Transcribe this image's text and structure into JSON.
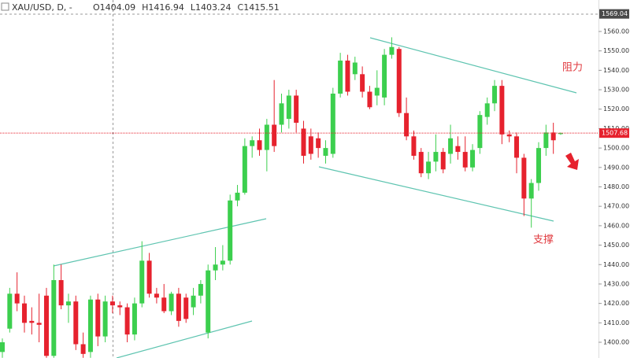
{
  "chart_data": {
    "type": "candlestick",
    "title": "XAU/USD, D, -",
    "ohlc": [
      {
        "value": 1404.09,
        "label": "O1404.09"
      },
      {
        "value": 1416.94,
        "label": "H1416.94"
      },
      {
        "value": 1403.24,
        "label": "L1403.24"
      },
      {
        "value": 1415.51,
        "label": "C1415.51"
      }
    ],
    "up_color": "#3ccf4e",
    "down_color": "#e6222e",
    "open": [
      1395,
      1407,
      1425,
      1420,
      1411,
      1410,
      1424,
      1393,
      1432,
      1419,
      1421,
      1399,
      1395,
      1422,
      1403,
      1421,
      1419,
      1418,
      1404,
      1420,
      1442,
      1425,
      1423,
      1416,
      1425,
      1423,
      1418,
      1424,
      1405,
      1437,
      1440,
      1442,
      1473,
      1477,
      1501,
      1504,
      1499,
      1512,
      1512,
      1515,
      1527,
      1510,
      1506,
      1505,
      1496,
      1497,
      1528,
      1545,
      1538,
      1538,
      1529,
      1527,
      1526,
      1548,
      1551,
      1518,
      1506,
      1498,
      1487,
      1493,
      1498,
      1497,
      1501,
      1498,
      1490,
      1500,
      1516,
      1523,
      1532,
      1507,
      1506,
      1495,
      1474,
      1482,
      1500,
      1508,
      1507.2
    ],
    "high": [
      1402,
      1428,
      1436,
      1424,
      1418,
      1425,
      1428,
      1440,
      1440,
      1425,
      1424,
      1405,
      1424,
      1425,
      1424,
      1424,
      1421,
      1420,
      1423,
      1452,
      1446,
      1428,
      1430,
      1426,
      1428,
      1425,
      1428,
      1432,
      1440,
      1449,
      1450,
      1476,
      1481,
      1505,
      1506,
      1510,
      1515,
      1535,
      1528,
      1530,
      1530,
      1514,
      1510,
      1508,
      1504,
      1531,
      1549,
      1548,
      1547,
      1542,
      1532,
      1540,
      1551,
      1557,
      1552,
      1526,
      1509,
      1500,
      1498,
      1507,
      1500,
      1512,
      1506,
      1506,
      1502,
      1519,
      1526,
      1535,
      1535,
      1509,
      1508,
      1497,
      1484,
      1503,
      1512,
      1513,
      1508
    ],
    "low": [
      1392,
      1405,
      1416,
      1405,
      1404,
      1400,
      1392,
      1392,
      1417,
      1410,
      1396,
      1392,
      1392,
      1398,
      1400,
      1415,
      1414,
      1400,
      1401,
      1418,
      1423,
      1420,
      1415,
      1414,
      1408,
      1410,
      1414,
      1420,
      1402,
      1432,
      1437,
      1440,
      1470,
      1476,
      1495,
      1496,
      1488,
      1498,
      1508,
      1510,
      1508,
      1492,
      1494,
      1495,
      1492,
      1495,
      1526,
      1527,
      1535,
      1526,
      1520,
      1522,
      1522,
      1546,
      1516,
      1504,
      1494,
      1485,
      1484,
      1488,
      1487,
      1492,
      1494,
      1488,
      1488,
      1497,
      1512,
      1519,
      1502,
      1503,
      1487,
      1465,
      1459,
      1478,
      1496,
      1497,
      1506.8
    ],
    "close": [
      1400,
      1425,
      1420,
      1410,
      1410,
      1409,
      1393,
      1432,
      1419,
      1421,
      1399,
      1394,
      1422,
      1403,
      1421,
      1419,
      1418,
      1404,
      1420,
      1442,
      1425,
      1423,
      1416,
      1425,
      1411,
      1412,
      1424,
      1430,
      1437,
      1440,
      1442,
      1473,
      1477,
      1501,
      1504,
      1499,
      1512,
      1501,
      1523,
      1527,
      1513,
      1496,
      1497,
      1500,
      1500,
      1528,
      1545,
      1529,
      1544,
      1529,
      1521,
      1531,
      1548,
      1552,
      1518,
      1506,
      1496,
      1487,
      1493,
      1498,
      1489,
      1505,
      1498,
      1490,
      1499,
      1517,
      1523,
      1532,
      1507,
      1506,
      1495,
      1474,
      1482,
      1500,
      1508,
      1504,
      1507.68
    ],
    "last_price": 1507.68,
    "high_marker": 1569.04,
    "ylim": [
      1391.9,
      1576.2
    ],
    "yticks": [
      {
        "value": 1400,
        "label": "1400.00"
      },
      {
        "value": 1410,
        "label": "1410.00"
      },
      {
        "value": 1420,
        "label": "1420.00"
      },
      {
        "value": 1430,
        "label": "1430.00"
      },
      {
        "value": 1440,
        "label": "1440.00"
      },
      {
        "value": 1450,
        "label": "1450.00"
      },
      {
        "value": 1460,
        "label": "1460.00"
      },
      {
        "value": 1470,
        "label": "1470.00"
      },
      {
        "value": 1480,
        "label": "1480.00"
      },
      {
        "value": 1490,
        "label": "1490.00"
      },
      {
        "value": 1500,
        "label": "1500.00"
      },
      {
        "value": 1510,
        "label": "1510.00"
      },
      {
        "value": 1520,
        "label": "1520.00"
      },
      {
        "value": 1530,
        "label": "1530.00"
      },
      {
        "value": 1540,
        "label": "1540.00"
      },
      {
        "value": 1550,
        "label": "1550.00"
      },
      {
        "value": 1560,
        "label": "1560.00"
      }
    ],
    "annotations": [
      "阻力",
      "支撑"
    ]
  }
}
